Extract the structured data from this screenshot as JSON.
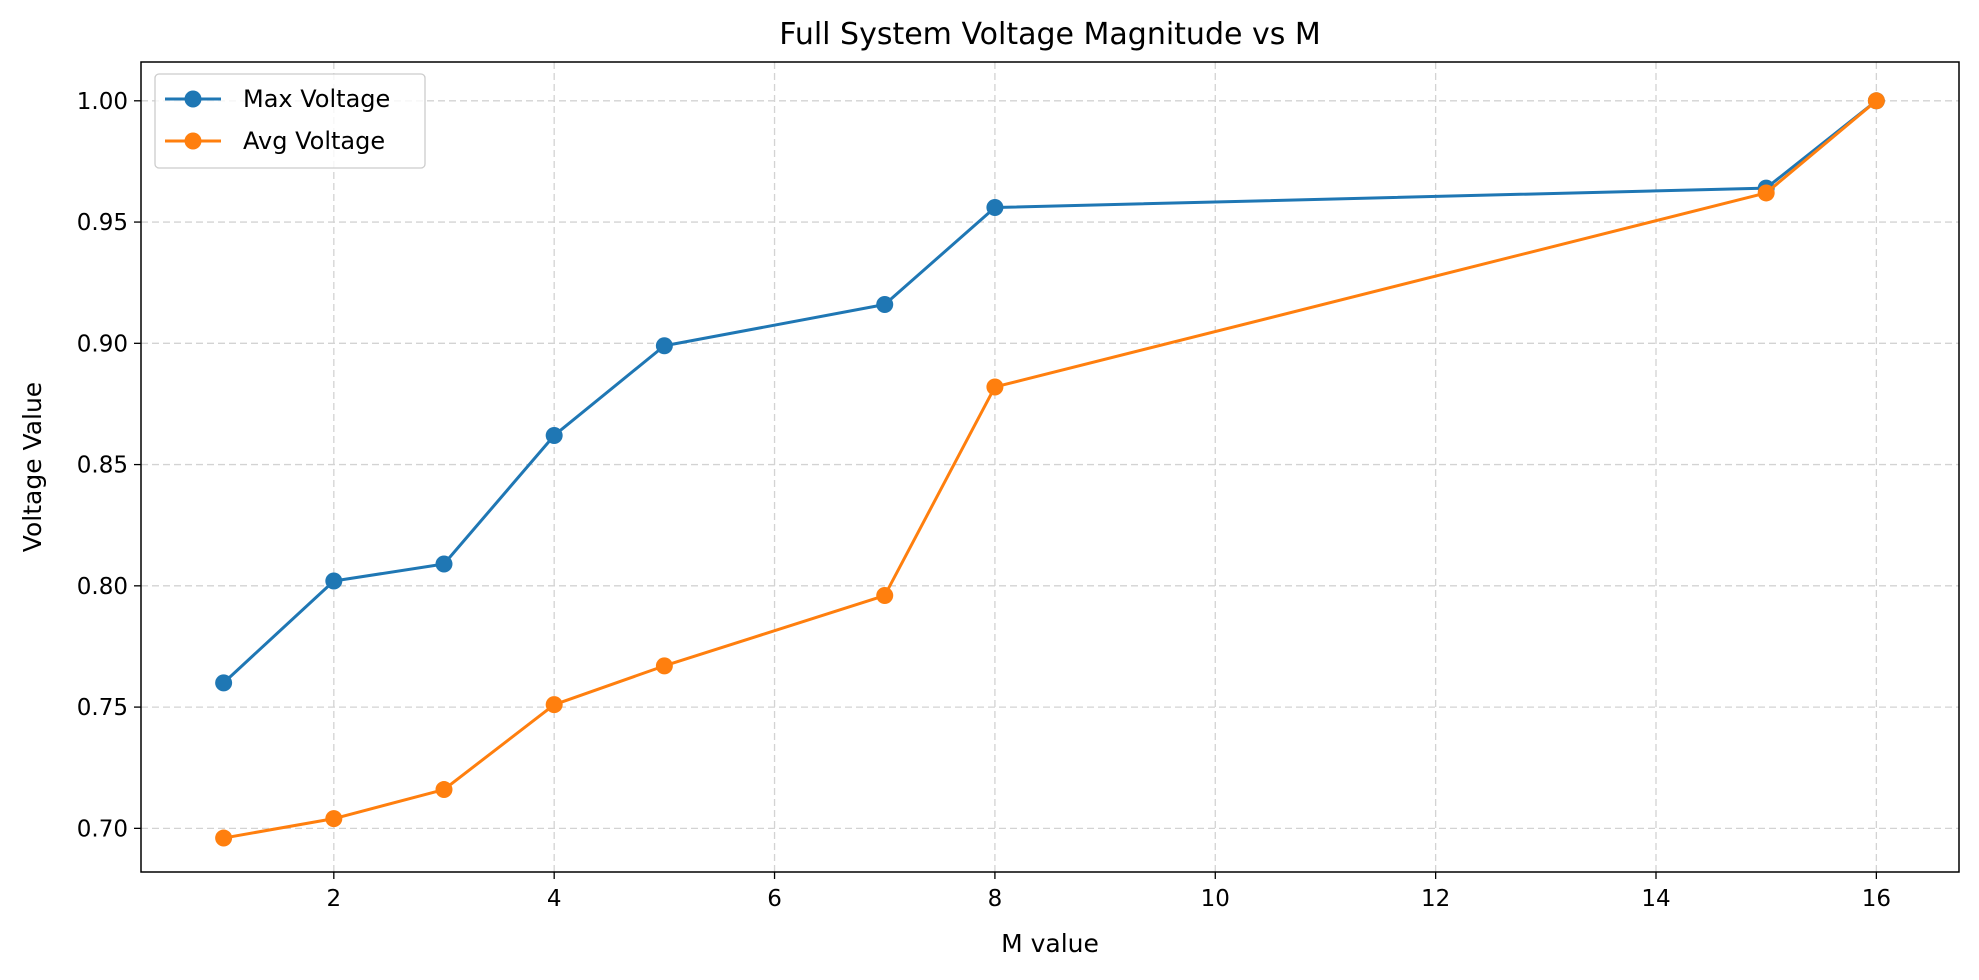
{
  "chart_data": {
    "type": "line",
    "title": "Full System Voltage Magnitude vs M",
    "xlabel": "M value",
    "ylabel": "Voltage Value",
    "xlim": [
      0.25,
      16.75
    ],
    "ylim": [
      0.682,
      1.016
    ],
    "xticks": [
      2,
      4,
      6,
      8,
      10,
      12,
      14,
      16
    ],
    "yticks": [
      0.7,
      0.75,
      0.8,
      0.85,
      0.9,
      0.95,
      1.0
    ],
    "xtick_labels": [
      "2",
      "4",
      "6",
      "8",
      "10",
      "12",
      "14",
      "16"
    ],
    "ytick_labels": [
      "0.70",
      "0.75",
      "0.80",
      "0.85",
      "0.90",
      "0.95",
      "1.00"
    ],
    "grid": true,
    "legend_position": "upper-left",
    "x": [
      1,
      2,
      3,
      4,
      5,
      7,
      8,
      15,
      16
    ],
    "series": [
      {
        "name": "Max Voltage",
        "color": "#1f77b4",
        "marker": "circle",
        "values": [
          0.76,
          0.802,
          0.809,
          0.862,
          0.899,
          0.916,
          0.956,
          0.964,
          1.0
        ]
      },
      {
        "name": "Avg Voltage",
        "color": "#ff7f0e",
        "marker": "circle",
        "values": [
          0.696,
          0.704,
          0.716,
          0.751,
          0.767,
          0.796,
          0.882,
          0.962,
          1.0
        ]
      }
    ]
  }
}
